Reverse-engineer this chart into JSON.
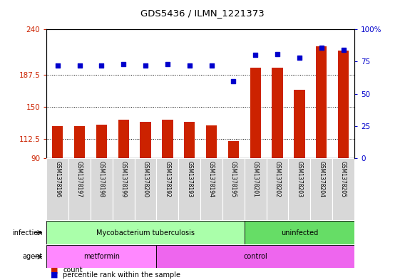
{
  "title": "GDS5436 / ILMN_1221373",
  "samples": [
    "GSM1378196",
    "GSM1378197",
    "GSM1378198",
    "GSM1378199",
    "GSM1378200",
    "GSM1378192",
    "GSM1378193",
    "GSM1378194",
    "GSM1378195",
    "GSM1378201",
    "GSM1378202",
    "GSM1378203",
    "GSM1378204",
    "GSM1378205"
  ],
  "bar_values": [
    127,
    127,
    129,
    135,
    132,
    135,
    132,
    128,
    110,
    195,
    195,
    170,
    220,
    215
  ],
  "dot_values_pct": [
    72,
    72,
    72,
    73,
    72,
    73,
    72,
    72,
    60,
    80,
    81,
    78,
    86,
    84
  ],
  "bar_color": "#cc2200",
  "dot_color": "#0000cc",
  "ylim_left": [
    90,
    240
  ],
  "ylim_right": [
    0,
    100
  ],
  "yticks_left": [
    90,
    112.5,
    150,
    187.5,
    240
  ],
  "yticks_right": [
    0,
    25,
    50,
    75,
    100
  ],
  "yticklabels_right": [
    "0",
    "25",
    "50",
    "75",
    "100%"
  ],
  "hlines": [
    112.5,
    150,
    187.5
  ],
  "infection_labels": [
    {
      "label": "Mycobacterium tuberculosis",
      "start": 0,
      "end": 9,
      "color": "#aaffaa"
    },
    {
      "label": "uninfected",
      "start": 9,
      "end": 14,
      "color": "#66dd66"
    }
  ],
  "agent_labels": [
    {
      "label": "metformin",
      "start": 0,
      "end": 5,
      "color": "#ff88ff"
    },
    {
      "label": "control",
      "start": 5,
      "end": 14,
      "color": "#ee66ee"
    }
  ],
  "infection_row_label": "infection",
  "agent_row_label": "agent",
  "legend_count_label": "count",
  "legend_pct_label": "percentile rank within the sample",
  "bg_color": "#d8d8d8",
  "bar_width": 0.5
}
